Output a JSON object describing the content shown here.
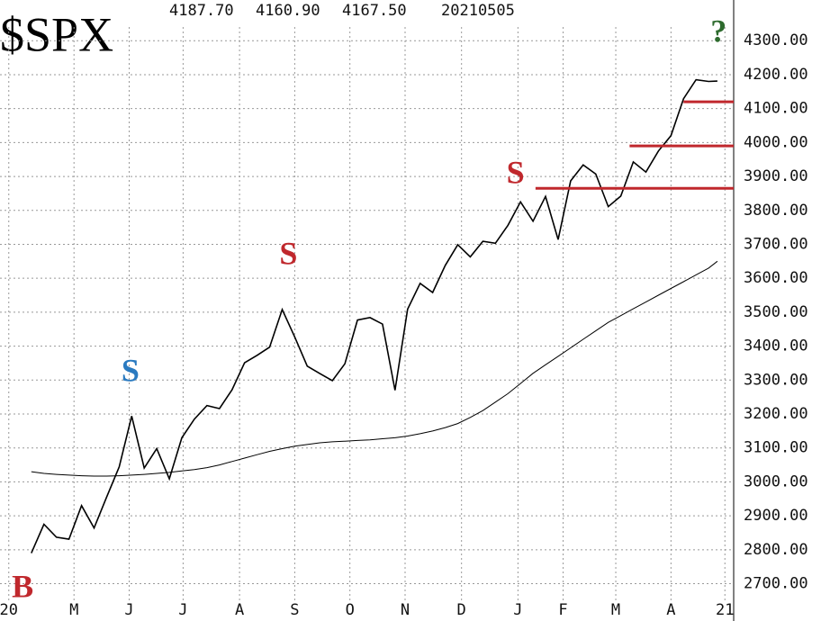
{
  "chart_data": {
    "type": "line",
    "title": "$SPX",
    "header": [
      "4187.70",
      "4160.90",
      "4167.50",
      "20210505"
    ],
    "x": [
      2.5,
      3.5,
      4.5,
      5.5,
      6.5,
      7.5,
      8.5,
      9.5,
      10.5,
      11.5,
      12.5,
      13.5,
      14.5,
      15.5,
      16.5,
      17.5,
      18.5,
      19.5,
      20.5,
      21.5,
      22.5,
      23.5,
      24.5,
      25.5,
      26.5,
      27.5,
      28.5,
      29.5,
      30.5,
      31.5,
      32.5,
      33.5,
      34.5,
      35.5,
      36.5,
      37.5,
      38.5,
      39.5,
      40.5,
      41.5,
      42.5,
      43.5,
      44.5,
      45.5,
      46.5,
      47.5,
      48.5,
      49.5,
      50.5,
      51.5,
      52.5,
      53.5,
      54.5,
      55.5,
      56.5,
      57.2
    ],
    "series": [
      {
        "color": "#000000",
        "width": 1.6,
        "values": [
          2790,
          2875,
          2837,
          2831,
          2930,
          2864,
          2955,
          3044,
          3194,
          3041,
          3098,
          3009,
          3130,
          3185,
          3225,
          3216,
          3271,
          3351,
          3373,
          3397,
          3508,
          3427,
          3341,
          3319,
          3298,
          3348,
          3477,
          3484,
          3465,
          3270,
          3509,
          3585,
          3558,
          3638,
          3699,
          3663,
          3709,
          3703,
          3756,
          3825,
          3768,
          3841,
          3714,
          3887,
          3934,
          3907,
          3811,
          3842,
          3943,
          3913,
          3975,
          4020,
          4129,
          4185,
          4180,
          4181
        ]
      },
      {
        "color": "#000000",
        "width": 1,
        "values": [
          3030,
          3025,
          3022,
          3020,
          3018,
          3017,
          3017,
          3018,
          3020,
          3022,
          3025,
          3028,
          3032,
          3036,
          3042,
          3050,
          3060,
          3070,
          3080,
          3090,
          3098,
          3105,
          3110,
          3115,
          3118,
          3120,
          3122,
          3124,
          3127,
          3130,
          3135,
          3142,
          3150,
          3160,
          3172,
          3190,
          3210,
          3235,
          3260,
          3290,
          3320,
          3345,
          3370,
          3395,
          3420,
          3445,
          3470,
          3490,
          3510,
          3530,
          3550,
          3570,
          3590,
          3610,
          3630,
          3650
        ]
      }
    ],
    "xlim": [
      0,
      58.5
    ],
    "xticks": [
      {
        "value": 0.7,
        "label": "20"
      },
      {
        "value": 5.9,
        "label": "M"
      },
      {
        "value": 10.3,
        "label": "J"
      },
      {
        "value": 14.6,
        "label": "J"
      },
      {
        "value": 19.1,
        "label": "A"
      },
      {
        "value": 23.5,
        "label": "S"
      },
      {
        "value": 27.9,
        "label": "O"
      },
      {
        "value": 32.3,
        "label": "N"
      },
      {
        "value": 36.8,
        "label": "D"
      },
      {
        "value": 41.3,
        "label": "J"
      },
      {
        "value": 44.9,
        "label": "F"
      },
      {
        "value": 49.1,
        "label": "M"
      },
      {
        "value": 53.5,
        "label": "A"
      },
      {
        "value": 57.8,
        "label": "21"
      }
    ],
    "ylim": [
      2590,
      4420
    ],
    "yticks": [
      {
        "value": 2700,
        "label": "2700.00"
      },
      {
        "value": 2800,
        "label": "2800.00"
      },
      {
        "value": 2900,
        "label": "2900.00"
      },
      {
        "value": 3000,
        "label": "3000.00"
      },
      {
        "value": 3100,
        "label": "3100.00"
      },
      {
        "value": 3200,
        "label": "3200.00"
      },
      {
        "value": 3300,
        "label": "3300.00"
      },
      {
        "value": 3400,
        "label": "3400.00"
      },
      {
        "value": 3500,
        "label": "3500.00"
      },
      {
        "value": 3600,
        "label": "3600.00"
      },
      {
        "value": 3700,
        "label": "3700.00"
      },
      {
        "value": 3800,
        "label": "3800.00"
      },
      {
        "value": 3900,
        "label": "3900.00"
      },
      {
        "value": 4000,
        "label": "4000.00"
      },
      {
        "value": 4100,
        "label": "4100.00"
      },
      {
        "value": 4200,
        "label": "4200.00"
      },
      {
        "value": 4300,
        "label": "4300.00"
      }
    ],
    "grid": true,
    "levels": [
      {
        "value": 4120,
        "from": 54.5,
        "color": "#c0282d"
      },
      {
        "value": 3990,
        "from": 50.2,
        "color": "#c0282d"
      },
      {
        "value": 3865,
        "from": 42.7,
        "color": "#c0282d"
      }
    ],
    "annotations": [
      {
        "text": "B",
        "x": 1.8,
        "y": 2682,
        "color": "#c0282d"
      },
      {
        "text": "S",
        "x": 10.4,
        "y": 3319,
        "color": "#2a7ac0"
      },
      {
        "text": "S",
        "x": 23,
        "y": 3663,
        "color": "#c0282d"
      },
      {
        "text": "S",
        "x": 41.1,
        "y": 3902,
        "color": "#c0282d"
      },
      {
        "text": "?",
        "x": 57.3,
        "y": 4318,
        "color": "#2e6b2e"
      }
    ]
  }
}
